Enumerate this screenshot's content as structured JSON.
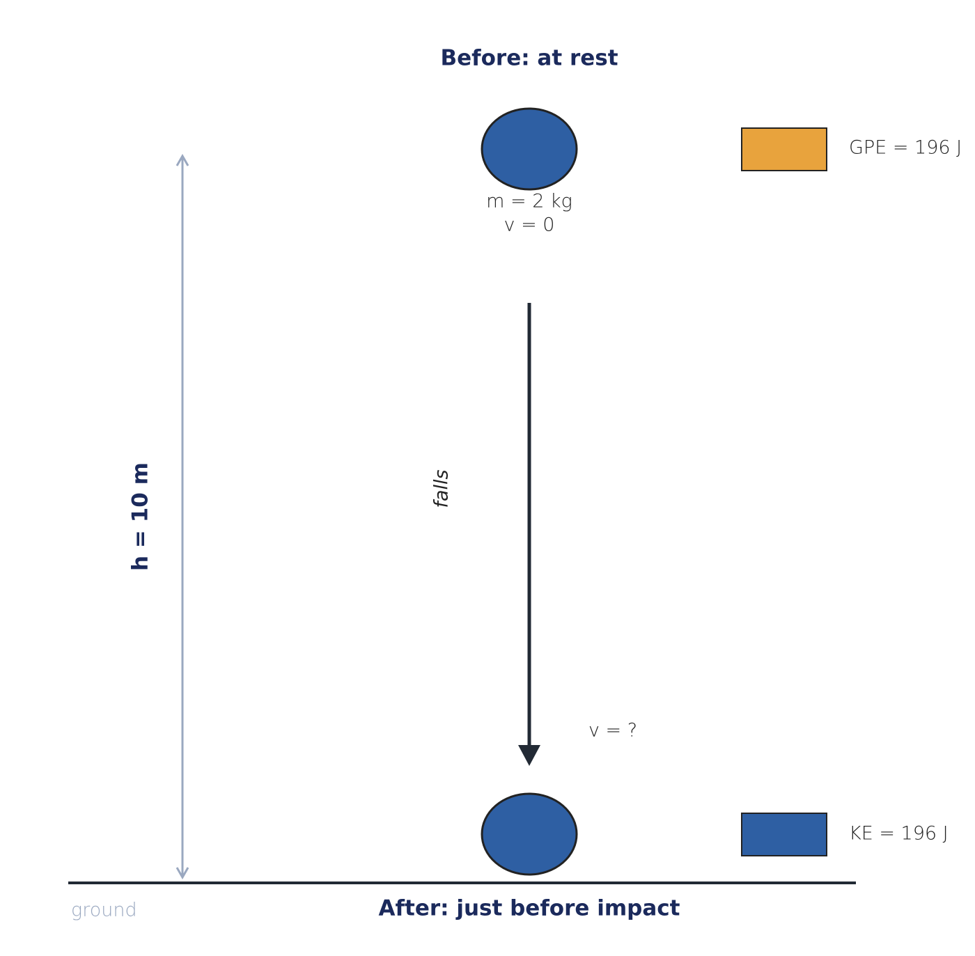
{
  "before": {
    "title": "Before: at rest",
    "mass": "m = 2 kg",
    "velocity": "v = 0"
  },
  "after": {
    "title": "After: just before impact",
    "velocity": "v = ?"
  },
  "height": "h = 10 m",
  "motion": "falls",
  "ground": "ground",
  "energy": {
    "before": "GPE = 196 J",
    "after": "KE = 196 J"
  }
}
